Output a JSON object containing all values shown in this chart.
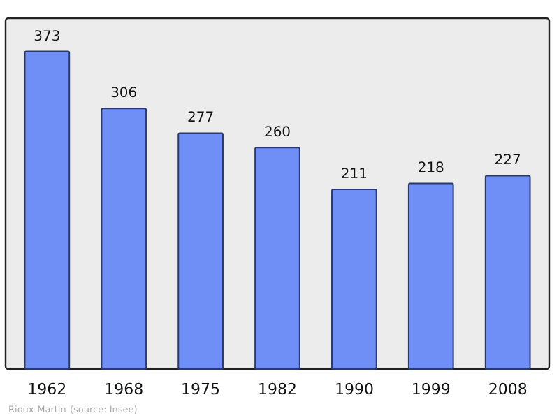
{
  "chart_data": {
    "type": "bar",
    "categories": [
      "1962",
      "1968",
      "1975",
      "1982",
      "1990",
      "1999",
      "2008"
    ],
    "values": [
      373,
      306,
      277,
      260,
      211,
      218,
      227
    ],
    "color": "#6f8ff7",
    "data_labels": true,
    "annotations": [
      "Rioux-Martin",
      "(source: Insee)"
    ]
  }
}
